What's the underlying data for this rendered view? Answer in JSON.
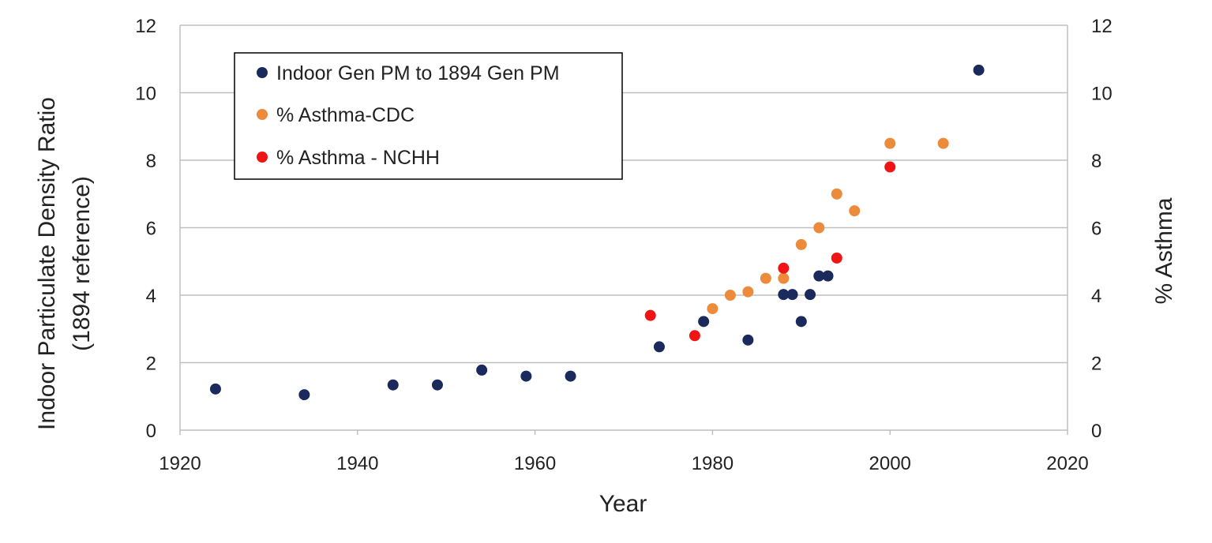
{
  "chart_data": {
    "type": "scatter",
    "xlabel": "Year",
    "ylabel": "Indoor Particulate Density Ratio",
    "ylabel_sub": "(1894 reference)",
    "y2label": "% Asthma",
    "xlim": [
      1920,
      2020
    ],
    "ylim": [
      0,
      12
    ],
    "y2lim": [
      0,
      12
    ],
    "x_ticks": [
      1920,
      1940,
      1960,
      1980,
      2000,
      2020
    ],
    "y_ticks": [
      0,
      2,
      4,
      6,
      8,
      10,
      12
    ],
    "y2_ticks": [
      0,
      2,
      4,
      6,
      8,
      10,
      12
    ],
    "grid": "horizontal",
    "legend_position": "top-left",
    "series": [
      {
        "name": "Indoor Gen PM to 1894 Gen PM",
        "color": "#1b2a5c",
        "axis": "left",
        "points": [
          {
            "x": 1924,
            "y": 1.22
          },
          {
            "x": 1934,
            "y": 1.05
          },
          {
            "x": 1944,
            "y": 1.34
          },
          {
            "x": 1949,
            "y": 1.34
          },
          {
            "x": 1954,
            "y": 1.78
          },
          {
            "x": 1959,
            "y": 1.6
          },
          {
            "x": 1964,
            "y": 1.6
          },
          {
            "x": 1974,
            "y": 2.47
          },
          {
            "x": 1979,
            "y": 3.22
          },
          {
            "x": 1984,
            "y": 2.67
          },
          {
            "x": 1988,
            "y": 4.02
          },
          {
            "x": 1989,
            "y": 4.02
          },
          {
            "x": 1990,
            "y": 3.22
          },
          {
            "x": 1991,
            "y": 4.02
          },
          {
            "x": 1992,
            "y": 4.57
          },
          {
            "x": 1993,
            "y": 4.57
          },
          {
            "x": 2010,
            "y": 10.67
          }
        ]
      },
      {
        "name": "% Asthma-CDC",
        "color": "#ed8b3d",
        "axis": "right",
        "points": [
          {
            "x": 1980,
            "y": 3.6
          },
          {
            "x": 1982,
            "y": 4.0
          },
          {
            "x": 1984,
            "y": 4.1
          },
          {
            "x": 1986,
            "y": 4.5
          },
          {
            "x": 1988,
            "y": 4.5
          },
          {
            "x": 1990,
            "y": 5.5
          },
          {
            "x": 1992,
            "y": 6.0
          },
          {
            "x": 1994,
            "y": 7.0
          },
          {
            "x": 1996,
            "y": 6.5
          },
          {
            "x": 2000,
            "y": 8.5
          },
          {
            "x": 2006,
            "y": 8.5
          }
        ]
      },
      {
        "name": "% Asthma - NCHH",
        "color": "#f01414",
        "axis": "right",
        "points": [
          {
            "x": 1973,
            "y": 3.4
          },
          {
            "x": 1978,
            "y": 2.8
          },
          {
            "x": 1988,
            "y": 4.8
          },
          {
            "x": 1994,
            "y": 5.1
          },
          {
            "x": 2000,
            "y": 7.8
          }
        ]
      }
    ]
  }
}
